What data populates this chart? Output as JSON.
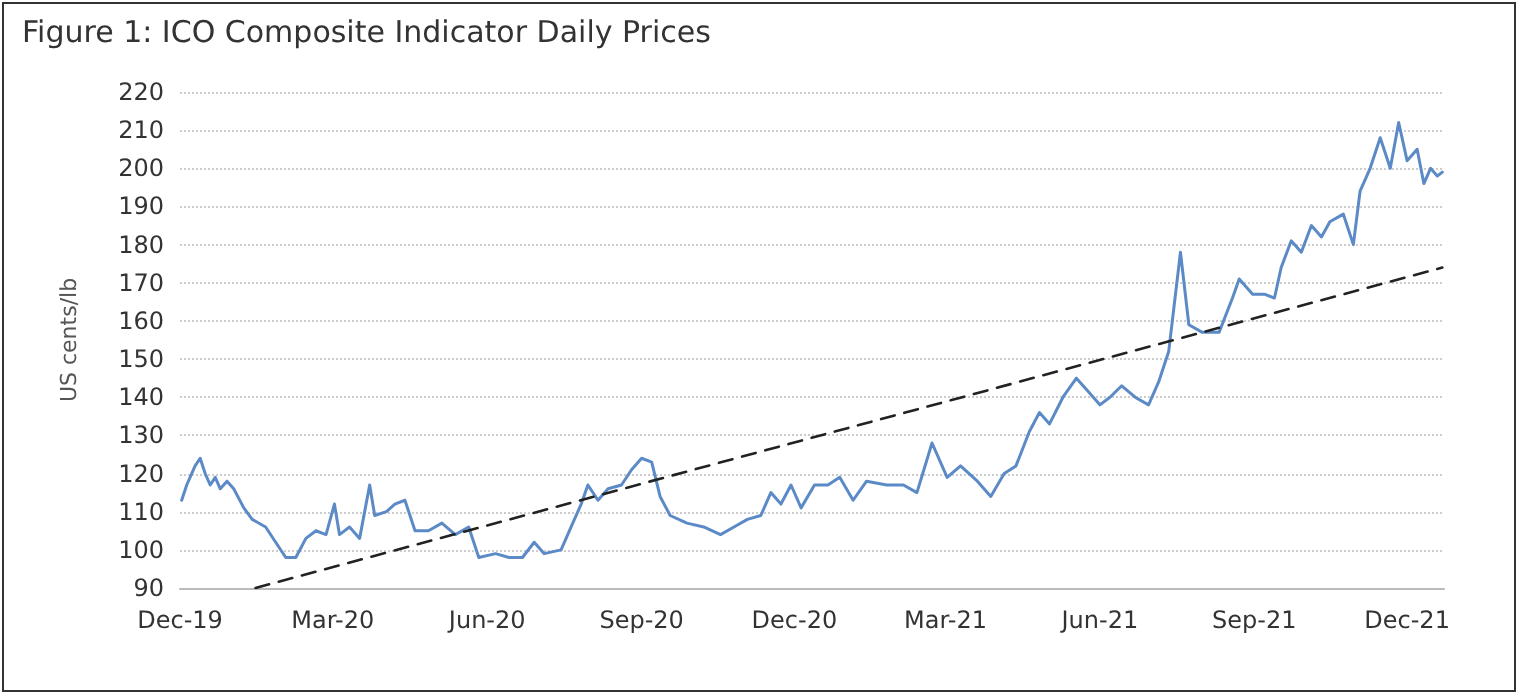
{
  "chart_data": {
    "type": "line",
    "title": "Figure 1: ICO Composite Indicator Daily Prices",
    "ylabel": "US cents/lb",
    "xlim": [
      "2019-12-01",
      "2021-12-23"
    ],
    "xticks": [
      {
        "value": "2019-12-01",
        "label": "Dec-19"
      },
      {
        "value": "2020-03-01",
        "label": "Mar-20"
      },
      {
        "value": "2020-06-01",
        "label": "Jun-20"
      },
      {
        "value": "2020-09-01",
        "label": "Sep-20"
      },
      {
        "value": "2020-12-01",
        "label": "Dec-20"
      },
      {
        "value": "2021-03-01",
        "label": "Mar-21"
      },
      {
        "value": "2021-06-01",
        "label": "Jun-21"
      },
      {
        "value": "2021-09-01",
        "label": "Sep-21"
      },
      {
        "value": "2021-12-01",
        "label": "Dec-21"
      }
    ],
    "ylim": [
      90,
      220
    ],
    "yticks": [
      90,
      100,
      110,
      120,
      130,
      140,
      150,
      160,
      170,
      180,
      190,
      200,
      210,
      220
    ],
    "grid": "y",
    "marker": "none",
    "series": [
      {
        "color": "#5b8ac6",
        "line_style": "solid",
        "x": [
          "2019-12-02",
          "2019-12-05",
          "2019-12-10",
          "2019-12-13",
          "2019-12-16",
          "2019-12-19",
          "2019-12-22",
          "2019-12-25",
          "2019-12-29",
          "2020-01-02",
          "2020-01-08",
          "2020-01-13",
          "2020-01-21",
          "2020-01-27",
          "2020-02-02",
          "2020-02-08",
          "2020-02-14",
          "2020-02-20",
          "2020-02-26",
          "2020-03-02",
          "2020-03-05",
          "2020-03-11",
          "2020-03-17",
          "2020-03-23",
          "2020-03-26",
          "2020-04-02",
          "2020-04-07",
          "2020-04-13",
          "2020-04-19",
          "2020-04-27",
          "2020-05-05",
          "2020-05-13",
          "2020-05-21",
          "2020-05-27",
          "2020-06-06",
          "2020-06-14",
          "2020-06-22",
          "2020-06-29",
          "2020-07-05",
          "2020-07-15",
          "2020-07-21",
          "2020-07-27",
          "2020-07-31",
          "2020-08-06",
          "2020-08-12",
          "2020-08-20",
          "2020-08-26",
          "2020-09-01",
          "2020-09-07",
          "2020-09-12",
          "2020-09-18",
          "2020-09-28",
          "2020-10-08",
          "2020-10-18",
          "2020-10-26",
          "2020-11-03",
          "2020-11-11",
          "2020-11-17",
          "2020-11-23",
          "2020-11-29",
          "2020-12-05",
          "2020-12-13",
          "2020-12-21",
          "2020-12-28",
          "2021-01-05",
          "2021-01-13",
          "2021-01-25",
          "2021-02-04",
          "2021-02-12",
          "2021-02-21",
          "2021-03-02",
          "2021-03-10",
          "2021-03-20",
          "2021-03-28",
          "2021-04-05",
          "2021-04-12",
          "2021-04-20",
          "2021-04-26",
          "2021-05-02",
          "2021-05-10",
          "2021-05-18",
          "2021-05-24",
          "2021-06-01",
          "2021-06-07",
          "2021-06-14",
          "2021-06-22",
          "2021-06-30",
          "2021-07-06",
          "2021-07-12",
          "2021-07-19",
          "2021-07-24",
          "2021-08-01",
          "2021-08-11",
          "2021-08-19",
          "2021-08-23",
          "2021-08-31",
          "2021-09-07",
          "2021-09-13",
          "2021-09-17",
          "2021-09-23",
          "2021-09-29",
          "2021-10-05",
          "2021-10-11",
          "2021-10-16",
          "2021-10-24",
          "2021-10-30",
          "2021-11-03",
          "2021-11-09",
          "2021-11-15",
          "2021-11-21",
          "2021-11-26",
          "2021-12-01",
          "2021-12-07",
          "2021-12-11",
          "2021-12-15",
          "2021-12-19",
          "2021-12-22"
        ],
        "values": [
          113,
          117,
          122,
          124,
          120,
          117,
          119,
          116,
          118,
          116,
          111,
          108,
          106,
          102,
          98,
          98,
          103,
          105,
          104,
          112,
          104,
          106,
          103,
          117,
          109,
          110,
          112,
          113,
          105,
          105,
          107,
          104,
          106,
          98,
          99,
          98,
          98,
          102,
          99,
          100,
          106,
          112,
          117,
          113,
          116,
          117,
          121,
          124,
          123,
          114,
          109,
          107,
          106,
          104,
          106,
          108,
          109,
          115,
          112,
          117,
          111,
          117,
          117,
          119,
          113,
          118,
          117,
          117,
          115,
          128,
          119,
          122,
          118,
          114,
          120,
          122,
          131,
          136,
          133,
          140,
          145,
          142,
          138,
          140,
          143,
          140,
          138,
          144,
          152,
          178,
          159,
          157,
          157,
          166,
          171,
          167,
          167,
          166,
          174,
          181,
          178,
          185,
          182,
          186,
          188,
          180,
          194,
          200,
          208,
          200,
          212,
          202,
          205,
          196,
          200,
          198,
          199
        ]
      },
      {
        "type": "line",
        "color": "#222222",
        "line_style": "dashed",
        "x": [
          "2020-01-15",
          "2021-12-22"
        ],
        "values": [
          90,
          174
        ]
      }
    ]
  }
}
